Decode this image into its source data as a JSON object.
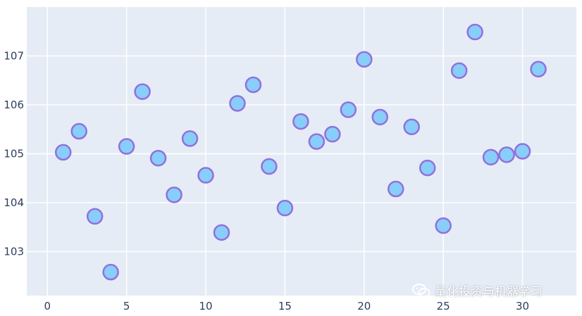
{
  "chart_data": {
    "type": "scatter",
    "title": "",
    "xlabel": "",
    "ylabel": "",
    "xlim": [
      -1.3,
      33.4
    ],
    "ylim": [
      102.1,
      108.0
    ],
    "xticks": [
      0,
      5,
      10,
      15,
      20,
      25,
      30
    ],
    "yticks": [
      103,
      104,
      105,
      106,
      107
    ],
    "grid": true,
    "x": [
      1,
      2,
      3,
      4,
      5,
      6,
      7,
      8,
      9,
      10,
      11,
      12,
      13,
      14,
      15,
      16,
      17,
      18,
      19,
      20,
      21,
      22,
      23,
      24,
      25,
      26,
      27,
      28,
      29,
      30,
      31
    ],
    "y": [
      105.03,
      105.46,
      103.72,
      102.58,
      105.15,
      106.27,
      104.91,
      104.16,
      105.31,
      104.56,
      103.39,
      106.03,
      106.41,
      104.74,
      103.89,
      105.66,
      105.25,
      105.4,
      105.9,
      106.93,
      105.75,
      104.28,
      105.55,
      104.71,
      103.53,
      106.7,
      107.49,
      104.93,
      104.98,
      105.05,
      106.73
    ],
    "colors": {
      "marker_fill": "#87cefa",
      "marker_line": "#9370db",
      "plot_bg": "#e5ecf6",
      "grid": "#ffffff",
      "tick_text": "#2a3f5f"
    }
  },
  "watermark": {
    "text": "量化投资与机器学习",
    "icon": "wechat-icon"
  }
}
